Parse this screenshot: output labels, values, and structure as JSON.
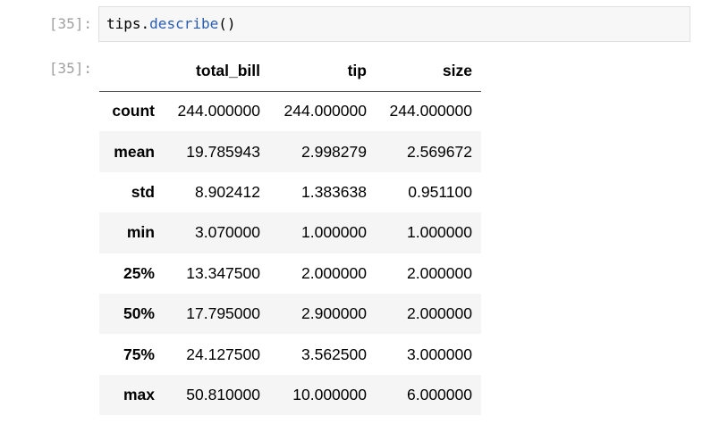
{
  "input_cell": {
    "prompt": "[35]:",
    "code": {
      "object": "tips",
      "dot": ".",
      "method": "describe",
      "parens": "()"
    }
  },
  "output_cell": {
    "prompt": "[35]:",
    "table": {
      "corner": "",
      "columns": [
        "total_bill",
        "tip",
        "size"
      ],
      "rows": [
        {
          "index": "count",
          "values": [
            "244.000000",
            "244.000000",
            "244.000000"
          ]
        },
        {
          "index": "mean",
          "values": [
            "19.785943",
            "2.998279",
            "2.569672"
          ]
        },
        {
          "index": "std",
          "values": [
            "8.902412",
            "1.383638",
            "0.951100"
          ]
        },
        {
          "index": "min",
          "values": [
            "3.070000",
            "1.000000",
            "1.000000"
          ]
        },
        {
          "index": "25%",
          "values": [
            "13.347500",
            "2.000000",
            "2.000000"
          ]
        },
        {
          "index": "50%",
          "values": [
            "17.795000",
            "2.900000",
            "2.000000"
          ]
        },
        {
          "index": "75%",
          "values": [
            "24.127500",
            "3.562500",
            "3.000000"
          ]
        },
        {
          "index": "max",
          "values": [
            "50.810000",
            "10.000000",
            "6.000000"
          ]
        }
      ]
    }
  },
  "colors": {
    "method_token": "#2a5db0",
    "prompt_text": "#a0a0a0",
    "code_background": "#f7f7f7",
    "stripe_row": "#f5f5f5"
  }
}
